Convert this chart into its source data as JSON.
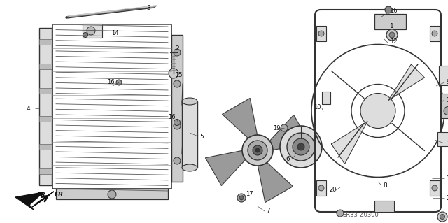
{
  "diagram_code": "SR33-Z0300",
  "bg_color": "#ffffff",
  "line_color": "#333333",
  "dark_color": "#111111"
}
